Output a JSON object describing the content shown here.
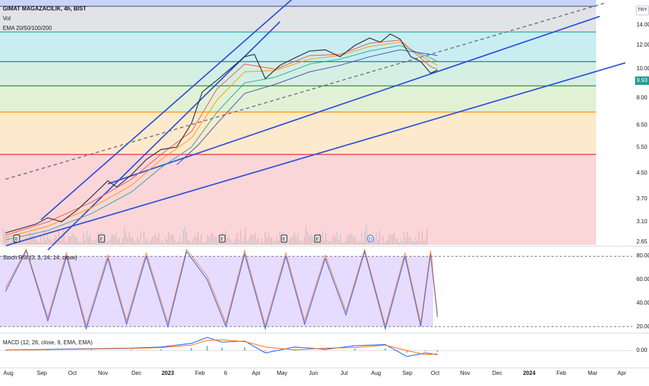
{
  "header": {
    "symbol": "GIMAT MAGAZACILIK, 4h, BIST",
    "vol_label": "Vol",
    "ema_label": "EMA 20/50/100/200",
    "currency": "TRY",
    "last_price": "9.93"
  },
  "indicators": {
    "stoch_label": "Stoch RSI (3, 3, 14, 14, close)",
    "macd_label": "MACD (12, 26, close, 9, EMA, EMA)"
  },
  "price_axis": [
    "14.00",
    "12.00",
    "10.00",
    "8.00",
    "6.50",
    "5.50",
    "4.50",
    "3.70",
    "3.10",
    "2.65"
  ],
  "stoch_axis": [
    "80.00",
    "60.00",
    "40.00",
    "20.00"
  ],
  "macd_axis": [
    "0.00"
  ],
  "time_axis": [
    {
      "text": "Aug",
      "year": false
    },
    {
      "text": "Sep",
      "year": false
    },
    {
      "text": "Oct",
      "year": false
    },
    {
      "text": "Nov",
      "year": false
    },
    {
      "text": "Dec",
      "year": false
    },
    {
      "text": "2023",
      "year": true
    },
    {
      "text": "Feb",
      "year": false
    },
    {
      "text": "6",
      "year": false
    },
    {
      "text": "Apr",
      "year": false
    },
    {
      "text": "May",
      "year": false
    },
    {
      "text": "Jun",
      "year": false
    },
    {
      "text": "Jul",
      "year": false
    },
    {
      "text": "Aug",
      "year": false
    },
    {
      "text": "Sep",
      "year": false
    },
    {
      "text": "Oct",
      "year": false
    },
    {
      "text": "Nov",
      "year": false
    },
    {
      "text": "Dec",
      "year": false
    },
    {
      "text": "2024",
      "year": true
    },
    {
      "text": "Feb",
      "year": false
    },
    {
      "text": "Mar",
      "year": false
    },
    {
      "text": "Apr",
      "year": false
    }
  ],
  "event_markers": [
    "E",
    "E",
    "E",
    "E",
    "E",
    "D",
    "E"
  ],
  "chart_data": [
    {
      "type": "line",
      "title": "GIMAT MAGAZACILIK, 4h, BIST",
      "y_scale": "log",
      "ylim": [
        2.6,
        17
      ],
      "fib_levels": [
        {
          "value": 16.2,
          "color": "#5b5f8a"
        },
        {
          "value": 13.3,
          "color": "#26a69a"
        },
        {
          "value": 10.6,
          "color": "#1e8f86"
        },
        {
          "value": 8.8,
          "color": "#2e9e3e"
        },
        {
          "value": 7.2,
          "color": "#ff9800"
        },
        {
          "value": 5.2,
          "color": "#f23645"
        }
      ],
      "zones": [
        {
          "from": 16.2,
          "to": 17.2,
          "color": "#c9d5f8"
        },
        {
          "from": 13.3,
          "to": 16.2,
          "color": "#e2e3e6"
        },
        {
          "from": 10.6,
          "to": 13.3,
          "color": "#c9eef2"
        },
        {
          "from": 8.8,
          "to": 10.6,
          "color": "#d4efe4"
        },
        {
          "from": 7.2,
          "to": 8.8,
          "color": "#e1f1d6"
        },
        {
          "from": 5.2,
          "to": 7.2,
          "color": "#fde9cc"
        },
        {
          "from": 2.6,
          "to": 5.2,
          "color": "#fbd6d9"
        }
      ],
      "series": [
        {
          "values": [
            [
              "2022-07-20",
              2.85
            ],
            [
              "2022-08-05",
              2.95
            ],
            [
              "2022-08-20",
              3.05
            ],
            [
              "2022-09-01",
              3.2
            ],
            [
              "2022-09-15",
              3.1
            ],
            [
              "2022-10-01",
              3.4
            ],
            [
              "2022-10-15",
              3.75
            ],
            [
              "2022-11-01",
              4.25
            ],
            [
              "2022-11-10",
              4.05
            ],
            [
              "2022-11-25",
              4.45
            ],
            [
              "2022-12-10",
              5.0
            ],
            [
              "2022-12-25",
              5.4
            ],
            [
              "2023-01-10",
              5.5
            ],
            [
              "2023-01-25",
              6.6
            ],
            [
              "2023-02-05",
              8.4
            ],
            [
              "2023-02-20",
              9.2
            ],
            [
              "2023-03-05",
              10.0
            ],
            [
              "2023-03-20",
              11.0
            ],
            [
              "2023-03-30",
              11.2
            ],
            [
              "2023-04-10",
              9.3
            ],
            [
              "2023-04-25",
              10.3
            ],
            [
              "2023-05-10",
              10.9
            ],
            [
              "2023-05-25",
              11.5
            ],
            [
              "2023-06-10",
              11.6
            ],
            [
              "2023-06-25",
              11.0
            ],
            [
              "2023-07-10",
              12.0
            ],
            [
              "2023-07-25",
              12.7
            ],
            [
              "2023-08-05",
              12.3
            ],
            [
              "2023-08-15",
              13.1
            ],
            [
              "2023-08-25",
              12.6
            ],
            [
              "2023-09-05",
              11.0
            ],
            [
              "2023-09-15",
              10.6
            ],
            [
              "2023-09-25",
              9.7
            ],
            [
              "2023-10-02",
              9.93
            ]
          ]
        }
      ],
      "ema_lines": [
        {
          "color": "#ef5350",
          "values": [
            [
              "2022-07-20",
              2.8
            ],
            [
              "2022-09-01",
              3.1
            ],
            [
              "2022-10-15",
              3.6
            ],
            [
              "2022-11-25",
              4.3
            ],
            [
              "2022-12-25",
              5.2
            ],
            [
              "2023-01-25",
              6.2
            ],
            [
              "2023-02-20",
              8.6
            ],
            [
              "2023-03-20",
              10.4
            ],
            [
              "2023-04-20",
              10.0
            ],
            [
              "2023-05-25",
              11.1
            ],
            [
              "2023-06-25",
              11.2
            ],
            [
              "2023-07-25",
              12.2
            ],
            [
              "2023-08-25",
              12.5
            ],
            [
              "2023-09-25",
              10.2
            ],
            [
              "2023-10-02",
              10.0
            ]
          ]
        },
        {
          "color": "#ff9800",
          "values": [
            [
              "2022-07-20",
              2.75
            ],
            [
              "2022-09-01",
              3.0
            ],
            [
              "2022-10-15",
              3.45
            ],
            [
              "2022-11-25",
              4.1
            ],
            [
              "2022-12-25",
              5.0
            ],
            [
              "2023-01-25",
              5.9
            ],
            [
              "2023-02-20",
              7.9
            ],
            [
              "2023-03-20",
              9.8
            ],
            [
              "2023-04-20",
              9.9
            ],
            [
              "2023-05-25",
              10.8
            ],
            [
              "2023-06-25",
              11.1
            ],
            [
              "2023-07-25",
              11.9
            ],
            [
              "2023-08-25",
              12.3
            ],
            [
              "2023-09-25",
              10.6
            ],
            [
              "2023-10-02",
              10.3
            ]
          ]
        },
        {
          "color": "#26a69a",
          "values": [
            [
              "2022-07-20",
              2.7
            ],
            [
              "2022-09-01",
              2.9
            ],
            [
              "2022-10-15",
              3.3
            ],
            [
              "2022-11-25",
              3.9
            ],
            [
              "2022-12-25",
              4.7
            ],
            [
              "2023-01-25",
              5.5
            ],
            [
              "2023-02-20",
              7.2
            ],
            [
              "2023-03-20",
              9.0
            ],
            [
              "2023-04-20",
              9.4
            ],
            [
              "2023-05-25",
              10.4
            ],
            [
              "2023-06-25",
              10.8
            ],
            [
              "2023-07-25",
              11.5
            ],
            [
              "2023-08-25",
              12.0
            ],
            [
              "2023-09-25",
              10.9
            ],
            [
              "2023-10-02",
              10.6
            ]
          ]
        },
        {
          "color": "#3f51b5",
          "values": [
            [
              "2023-01-10",
              4.8
            ],
            [
              "2023-02-01",
              5.6
            ],
            [
              "2023-02-20",
              6.6
            ],
            [
              "2023-03-20",
              8.3
            ],
            [
              "2023-04-20",
              8.9
            ],
            [
              "2023-05-25",
              9.8
            ],
            [
              "2023-06-25",
              10.3
            ],
            [
              "2023-07-25",
              11.0
            ],
            [
              "2023-08-25",
              11.6
            ],
            [
              "2023-09-25",
              11.2
            ],
            [
              "2023-10-02",
              11.1
            ]
          ]
        }
      ],
      "trend_lines": [
        {
          "style": "solid",
          "points": [
            [
              "2022-07-20",
              2.58
            ],
            [
              "2024-04-10",
              10.5
            ]
          ]
        },
        {
          "style": "solid",
          "points": [
            [
              "2022-11-01",
              4.15
            ],
            [
              "2024-03-15",
              15.0
            ]
          ]
        },
        {
          "style": "solid",
          "points": [
            [
              "2022-09-01",
              2.5
            ],
            [
              "2023-04-25",
              14.4
            ]
          ]
        },
        {
          "style": "solid",
          "points": [
            [
              "2022-08-25",
              3.15
            ],
            [
              "2023-05-15",
              18.0
            ]
          ]
        },
        {
          "style": "dashed",
          "points": [
            [
              "2022-07-20",
              4.3
            ],
            [
              "2024-03-20",
              16.6
            ]
          ]
        }
      ]
    },
    {
      "type": "line",
      "title": "Stoch RSI (3, 3, 14, 14, close)",
      "ylim": [
        15,
        88
      ],
      "bands": [
        80,
        20
      ],
      "series": [
        {
          "values": [
            [
              "2022-07-20",
              50
            ],
            [
              "2022-08-10",
              85
            ],
            [
              "2022-09-01",
              25
            ],
            [
              "2022-09-20",
              80
            ],
            [
              "2022-10-10",
              18
            ],
            [
              "2022-11-01",
              78
            ],
            [
              "2022-11-20",
              22
            ],
            [
              "2022-12-10",
              80
            ],
            [
              "2023-01-01",
              20
            ],
            [
              "2023-01-20",
              84
            ],
            [
              "2023-02-10",
              60
            ],
            [
              "2023-03-01",
              20
            ],
            [
              "2023-03-20",
              82
            ],
            [
              "2023-04-10",
              18
            ],
            [
              "2023-05-01",
              80
            ],
            [
              "2023-05-20",
              22
            ],
            [
              "2023-06-10",
              78
            ],
            [
              "2023-07-01",
              30
            ],
            [
              "2023-07-20",
              84
            ],
            [
              "2023-08-10",
              18
            ],
            [
              "2023-08-30",
              80
            ],
            [
              "2023-09-15",
              20
            ],
            [
              "2023-09-25",
              82
            ],
            [
              "2023-10-02",
              28
            ]
          ]
        }
      ]
    },
    {
      "type": "line",
      "title": "MACD (12, 26, close, 9, EMA, EMA)",
      "ylim": [
        -1.4,
        1.4
      ],
      "series": [
        {
          "values": [
            [
              "2022-07-20",
              0.05
            ],
            [
              "2022-09-01",
              0.1
            ],
            [
              "2022-10-15",
              0.15
            ],
            [
              "2022-11-25",
              0.2
            ],
            [
              "2022-12-25",
              0.3
            ],
            [
              "2023-01-25",
              0.6
            ],
            [
              "2023-02-10",
              1.1
            ],
            [
              "2023-02-25",
              0.7
            ],
            [
              "2023-03-20",
              0.8
            ],
            [
              "2023-04-10",
              -0.2
            ],
            [
              "2023-05-10",
              0.3
            ],
            [
              "2023-06-10",
              0.1
            ],
            [
              "2023-07-10",
              0.4
            ],
            [
              "2023-08-10",
              0.5
            ],
            [
              "2023-09-01",
              -0.5
            ],
            [
              "2023-09-20",
              -0.2
            ],
            [
              "2023-10-02",
              -0.35
            ]
          ]
        }
      ]
    }
  ]
}
